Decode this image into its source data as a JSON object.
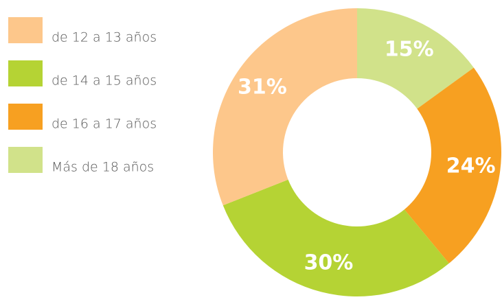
{
  "chart_data": {
    "type": "pie",
    "categories": [
      "de 12 a 13 años",
      "de 14 a 15 años",
      "de 16 a 17 años",
      "Más de 18 años"
    ],
    "values": [
      31,
      30,
      24,
      15
    ],
    "value_labels": [
      "31%",
      "30%",
      "24%",
      "15%"
    ],
    "colors": [
      "#fdc78b",
      "#b5d334",
      "#f7a021",
      "#d1e28a"
    ],
    "donut": true
  }
}
